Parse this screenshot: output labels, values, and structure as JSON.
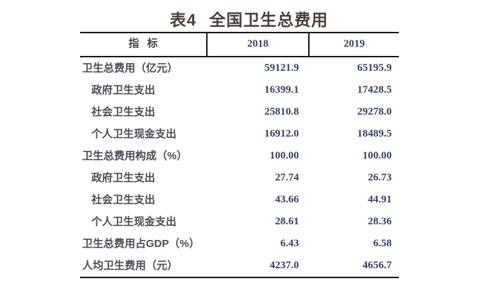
{
  "title": {
    "prefix": "表4",
    "main": "全国卫生总费用"
  },
  "table": {
    "columns": [
      "指 标",
      "2018",
      "2019"
    ],
    "rows": [
      {
        "label": "卫生总费用（亿元）",
        "indent": false,
        "v2018": "59121.9",
        "v2019": "65195.9"
      },
      {
        "label": "政府卫生支出",
        "indent": true,
        "v2018": "16399.1",
        "v2019": "17428.5"
      },
      {
        "label": "社会卫生支出",
        "indent": true,
        "v2018": "25810.8",
        "v2019": "29278.0"
      },
      {
        "label": "个人卫生现金支出",
        "indent": true,
        "v2018": "16912.0",
        "v2019": "18489.5"
      },
      {
        "label": "卫生总费用构成（%）",
        "indent": false,
        "v2018": "100.00",
        "v2019": "100.00"
      },
      {
        "label": "政府卫生支出",
        "indent": true,
        "v2018": "27.74",
        "v2019": "26.73"
      },
      {
        "label": "社会卫生支出",
        "indent": true,
        "v2018": "43.66",
        "v2019": "44.91"
      },
      {
        "label": "个人卫生现金支出",
        "indent": true,
        "v2018": "28.61",
        "v2019": "28.36"
      },
      {
        "label": "卫生总费用占GDP（%）",
        "indent": false,
        "v2018": "6.43",
        "v2019": "6.58"
      },
      {
        "label": "人均卫生费用（元）",
        "indent": false,
        "v2018": "4237.0",
        "v2019": "4656.7"
      }
    ]
  },
  "chart_data": {
    "type": "table",
    "title": "表4 全国卫生总费用",
    "categories": [
      "卫生总费用（亿元）",
      "政府卫生支出（亿元）",
      "社会卫生支出（亿元）",
      "个人卫生现金支出（亿元）",
      "卫生总费用构成（%）",
      "政府卫生支出构成（%）",
      "社会卫生支出构成（%）",
      "个人卫生现金支出构成（%）",
      "卫生总费用占GDP（%）",
      "人均卫生费用（元）"
    ],
    "series": [
      {
        "name": "2018",
        "values": [
          59121.9,
          16399.1,
          25810.8,
          16912.0,
          100.0,
          27.74,
          43.66,
          28.61,
          6.43,
          4237.0
        ]
      },
      {
        "name": "2019",
        "values": [
          65195.9,
          17428.5,
          29278.0,
          18489.5,
          100.0,
          26.73,
          44.91,
          28.36,
          6.58,
          4656.7
        ]
      }
    ]
  },
  "colors": {
    "title": "#4c3e39",
    "label_text": "#4b4b58",
    "number_text": "#35405f",
    "border": "#161616",
    "background": "#ffffff"
  }
}
